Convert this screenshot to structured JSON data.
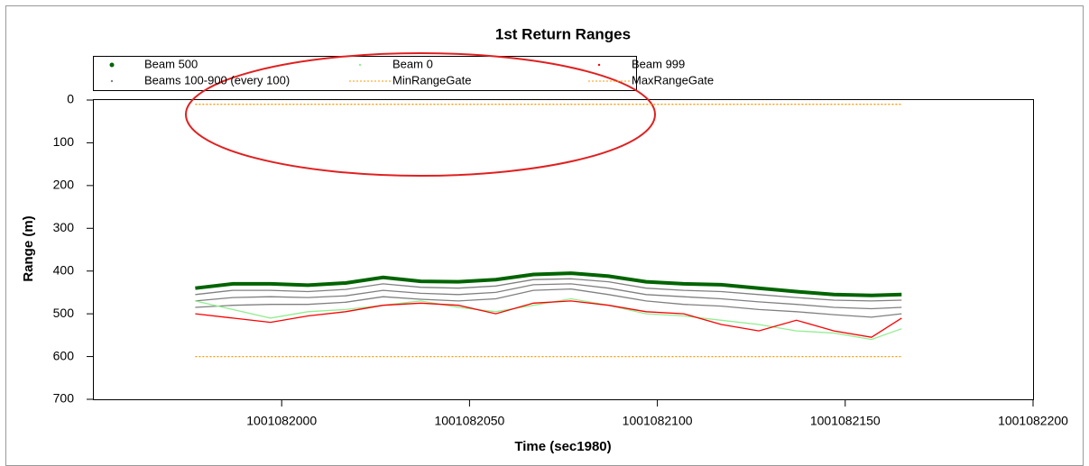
{
  "chart_data": {
    "type": "line",
    "title": "1st Return Ranges",
    "xlabel": "Time (sec1980)",
    "ylabel": "Range (m)",
    "x": [
      1001081977,
      1001081987,
      1001081997,
      1001082007,
      1001082017,
      1001082027,
      1001082037,
      1001082047,
      1001082057,
      1001082067,
      1001082077,
      1001082087,
      1001082097,
      1001082107,
      1001082117,
      1001082127,
      1001082137,
      1001082147,
      1001082157,
      1001082165
    ],
    "xlim": [
      1001081950,
      1001082200
    ],
    "xticks": [
      1001082000,
      1001082050,
      1001082100,
      1001082150,
      1001082200
    ],
    "ylim": [
      0,
      700
    ],
    "yticks": [
      0,
      100,
      200,
      300,
      400,
      500,
      600,
      700
    ],
    "y_inverted": true,
    "series": [
      {
        "name": "Beams 100-900 (every 100)",
        "color": "#808080",
        "values": [
          455,
          445,
          445,
          448,
          443,
          430,
          438,
          440,
          435,
          420,
          418,
          425,
          440,
          445,
          448,
          455,
          462,
          468,
          470,
          468
        ]
      },
      {
        "color": "#808080",
        "values": [
          470,
          462,
          460,
          462,
          458,
          445,
          452,
          455,
          450,
          432,
          430,
          440,
          455,
          460,
          465,
          472,
          478,
          485,
          488,
          485
        ]
      },
      {
        "color": "#808080",
        "values": [
          485,
          480,
          478,
          478,
          473,
          460,
          466,
          470,
          465,
          445,
          442,
          455,
          470,
          478,
          482,
          490,
          495,
          502,
          508,
          500
        ]
      },
      {
        "name": "Beam 0",
        "color": "#90ee90",
        "values": [
          470,
          490,
          510,
          495,
          490,
          480,
          470,
          485,
          495,
          480,
          465,
          480,
          500,
          505,
          515,
          525,
          540,
          545,
          560,
          535
        ]
      },
      {
        "name": "Beam 999",
        "color": "#ff0000",
        "values": [
          500,
          510,
          520,
          505,
          495,
          480,
          475,
          480,
          500,
          475,
          470,
          480,
          495,
          500,
          525,
          540,
          515,
          540,
          555,
          510
        ]
      },
      {
        "name": "Beam 500",
        "color": "#006400",
        "values": [
          440,
          430,
          430,
          433,
          428,
          415,
          424,
          425,
          420,
          408,
          405,
          412,
          425,
          430,
          432,
          440,
          448,
          455,
          457,
          455
        ]
      },
      {
        "name": "MinRangeGate",
        "color": "#ff9900",
        "dotted": true,
        "values": [
          10,
          10,
          10,
          10,
          10,
          10,
          10,
          10,
          10,
          10,
          10,
          10,
          10,
          10,
          10,
          10,
          10,
          10,
          10,
          10
        ]
      },
      {
        "name": "MaxRangeGate",
        "color": "#ff9900",
        "dotted": true,
        "values": [
          600,
          600,
          600,
          600,
          600,
          600,
          600,
          600,
          600,
          600,
          600,
          600,
          600,
          600,
          600,
          600,
          600,
          600,
          600,
          600
        ]
      }
    ]
  }
}
